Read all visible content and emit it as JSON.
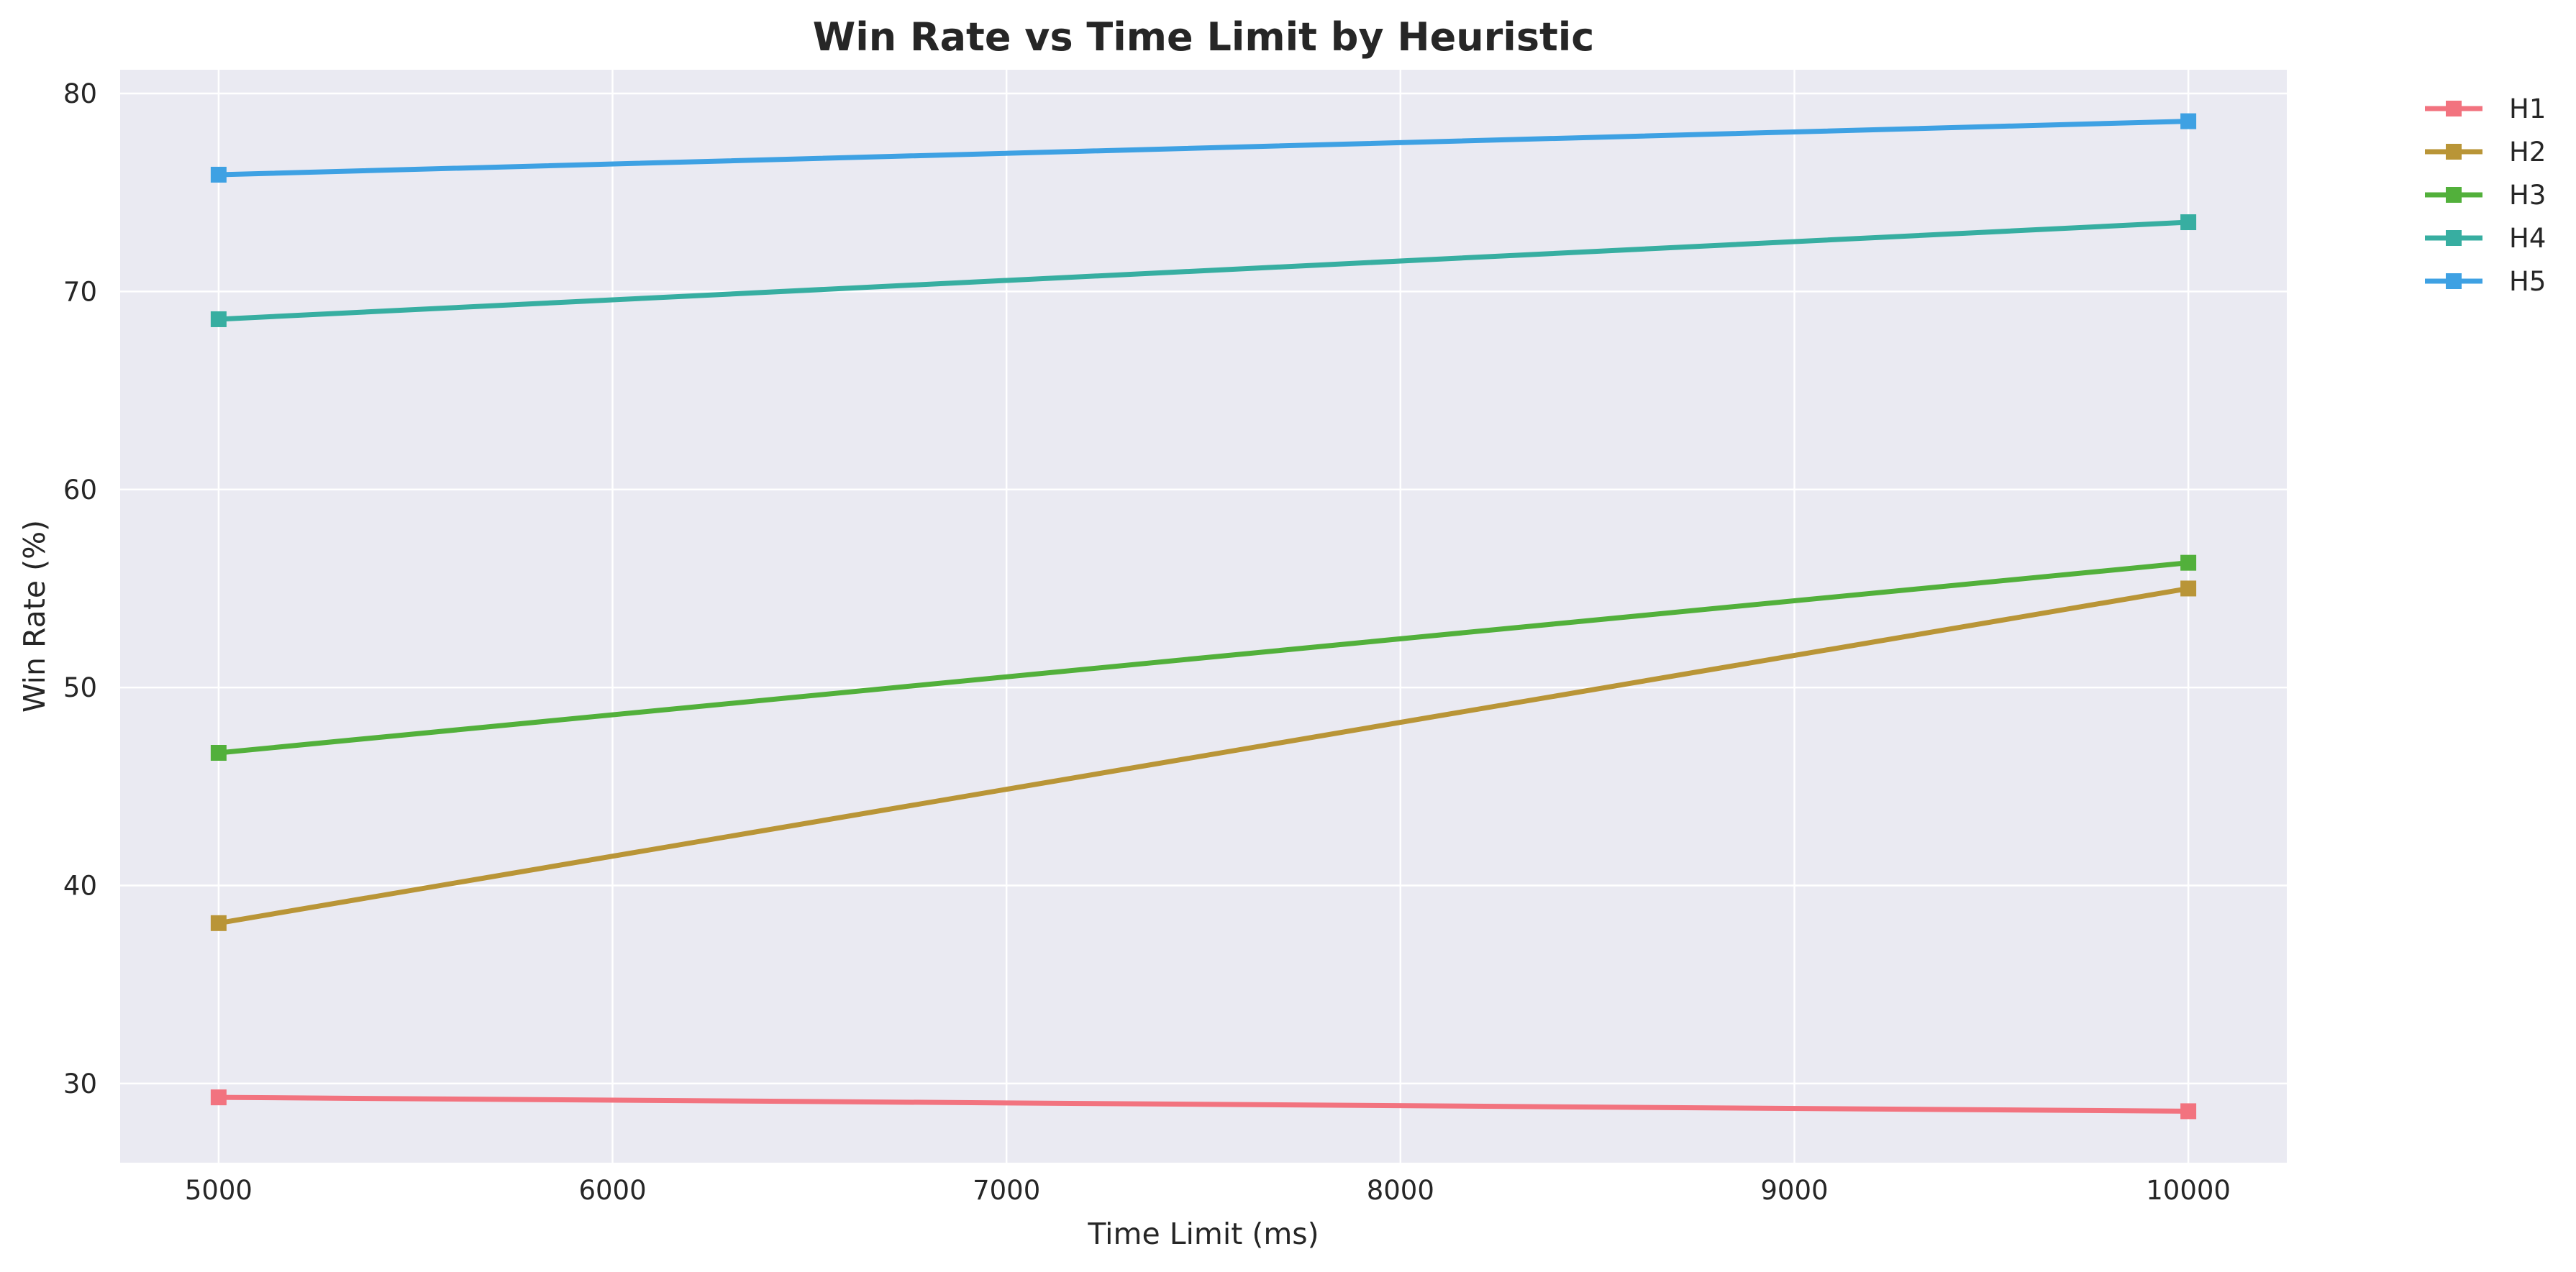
{
  "chart_data": {
    "type": "line",
    "title": "Win Rate vs Time Limit by Heuristic",
    "xlabel": "Time Limit (ms)",
    "ylabel": "Win Rate (%)",
    "x": [
      5000,
      10000
    ],
    "xlim": [
      4750,
      10250
    ],
    "ylim": [
      26,
      81.2
    ],
    "xticks": [
      5000,
      6000,
      7000,
      8000,
      9000,
      10000
    ],
    "yticks": [
      30,
      40,
      50,
      60,
      70,
      80
    ],
    "grid": true,
    "legend_position": "outside top-right",
    "marker": "square",
    "series": [
      {
        "name": "H1",
        "color": "#f2737f",
        "values": [
          29.3,
          28.6
        ]
      },
      {
        "name": "H2",
        "color": "#b99537",
        "values": [
          38.1,
          55.0
        ]
      },
      {
        "name": "H3",
        "color": "#52b03b",
        "values": [
          46.7,
          56.3
        ]
      },
      {
        "name": "H4",
        "color": "#37aea1",
        "values": [
          68.6,
          73.5
        ]
      },
      {
        "name": "H5",
        "color": "#3ea1e3",
        "values": [
          75.9,
          78.6
        ]
      }
    ]
  }
}
